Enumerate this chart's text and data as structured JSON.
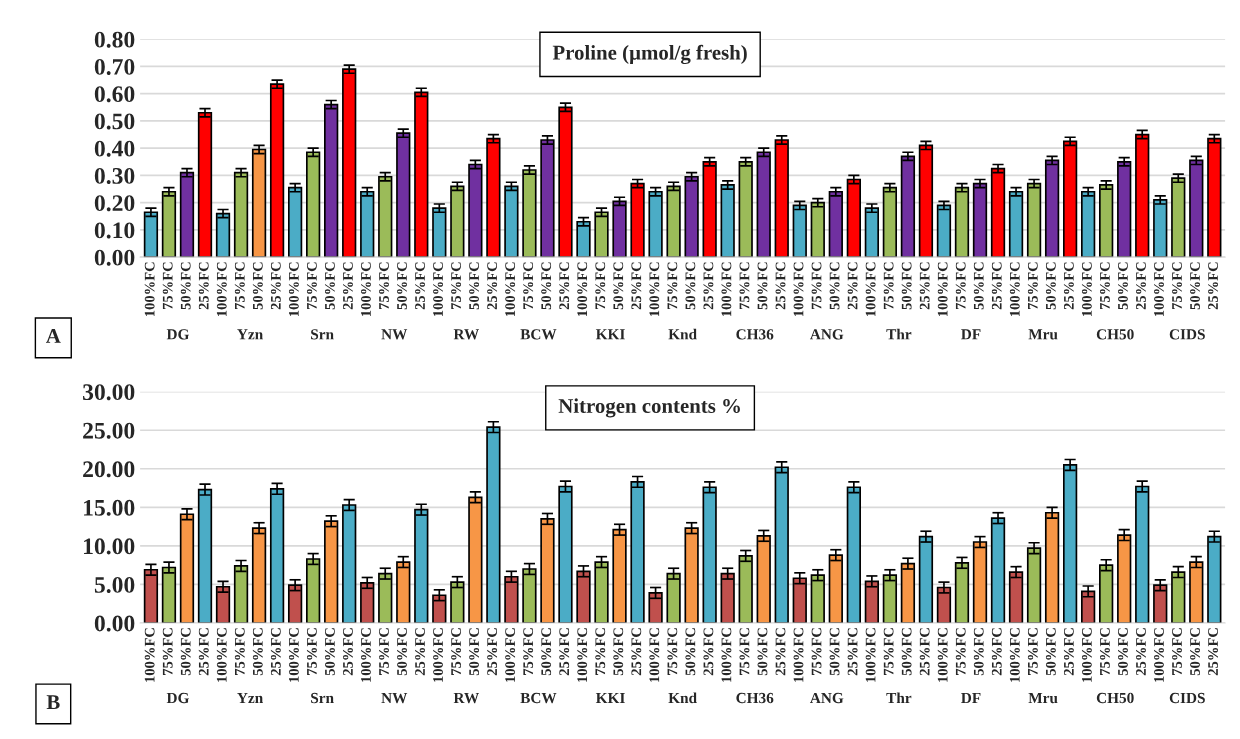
{
  "chart_data": [
    {
      "type": "bar",
      "title": "Proline (µmol/g fresh)",
      "categories": [
        "100%FC",
        "75%FC",
        "50%FC",
        "25%FC",
        "100%FC",
        "75%FC",
        "50%FC",
        "25%FC",
        "100%FC",
        "75%FC",
        "50%FC",
        "25%FC",
        "100%FC",
        "75%FC",
        "50%FC",
        "25%FC",
        "100%FC",
        "75%FC",
        "50%FC",
        "25%FC",
        "100%FC",
        "75%FC",
        "50%FC",
        "25%FC",
        "100%FC",
        "75%FC",
        "50%FC",
        "25%FC",
        "100%FC",
        "75%FC",
        "50%FC",
        "25%FC",
        "100%FC",
        "75%FC",
        "50%FC",
        "25%FC",
        "100%FC",
        "75%FC",
        "50%FC",
        "25%FC",
        "100%FC",
        "75%FC",
        "50%FC",
        "25%FC",
        "100%FC",
        "75%FC",
        "50%FC",
        "25%FC",
        "100%FC",
        "75%FC",
        "50%FC",
        "25%FC",
        "100%FC",
        "75%FC",
        "50%FC",
        "25%FC",
        "100%FC",
        "75%FC",
        "50%FC",
        "25%FC"
      ],
      "values": [
        0.165,
        0.24,
        0.31,
        0.53,
        0.16,
        0.31,
        0.395,
        0.635,
        0.255,
        0.385,
        0.56,
        0.69,
        0.24,
        0.295,
        0.455,
        0.605,
        0.18,
        0.26,
        0.34,
        0.435,
        0.26,
        0.32,
        0.43,
        0.55,
        0.13,
        0.165,
        0.205,
        0.27,
        0.24,
        0.26,
        0.295,
        0.35,
        0.265,
        0.35,
        0.385,
        0.43,
        0.19,
        0.2,
        0.24,
        0.285,
        0.18,
        0.255,
        0.37,
        0.41,
        0.19,
        0.255,
        0.27,
        0.325,
        0.24,
        0.27,
        0.355,
        0.425,
        0.24,
        0.265,
        0.35,
        0.45,
        0.21,
        0.29,
        0.355,
        0.435
      ],
      "colors": [
        "#4bacc6",
        "#9bbb59",
        "#7030a0",
        "#ff0000",
        "#4bacc6",
        "#9bbb59",
        "#f79646",
        "#ff0000",
        "#4bacc6",
        "#9bbb59",
        "#7030a0",
        "#ff0000",
        "#4bacc6",
        "#9bbb59",
        "#7030a0",
        "#ff0000",
        "#4bacc6",
        "#9bbb59",
        "#7030a0",
        "#ff0000",
        "#4bacc6",
        "#9bbb59",
        "#7030a0",
        "#ff0000",
        "#4bacc6",
        "#9bbb59",
        "#7030a0",
        "#ff0000",
        "#4bacc6",
        "#9bbb59",
        "#7030a0",
        "#ff0000",
        "#4bacc6",
        "#9bbb59",
        "#7030a0",
        "#ff0000",
        "#4bacc6",
        "#9bbb59",
        "#7030a0",
        "#ff0000",
        "#4bacc6",
        "#9bbb59",
        "#7030a0",
        "#ff0000",
        "#4bacc6",
        "#9bbb59",
        "#7030a0",
        "#ff0000",
        "#4bacc6",
        "#9bbb59",
        "#7030a0",
        "#ff0000",
        "#4bacc6",
        "#9bbb59",
        "#7030a0",
        "#ff0000",
        "#4bacc6",
        "#9bbb59",
        "#7030a0",
        "#ff0000"
      ],
      "errors": [
        0.015,
        0.015,
        0.015,
        0.015,
        0.015,
        0.015,
        0.015,
        0.015,
        0.015,
        0.015,
        0.015,
        0.015,
        0.015,
        0.015,
        0.015,
        0.015,
        0.015,
        0.015,
        0.015,
        0.015,
        0.015,
        0.015,
        0.015,
        0.015,
        0.015,
        0.015,
        0.015,
        0.015,
        0.015,
        0.015,
        0.015,
        0.015,
        0.015,
        0.015,
        0.015,
        0.015,
        0.015,
        0.015,
        0.015,
        0.015,
        0.015,
        0.015,
        0.015,
        0.015,
        0.015,
        0.015,
        0.015,
        0.015,
        0.015,
        0.015,
        0.015,
        0.015,
        0.015,
        0.015,
        0.015,
        0.015,
        0.015,
        0.015,
        0.015,
        0.015
      ],
      "ylim": [
        0,
        0.8
      ],
      "yticks": [
        {
          "value": 0,
          "label": "0.00"
        },
        {
          "value": 0.1,
          "label": "0.10"
        },
        {
          "value": 0.2,
          "label": "0.20"
        },
        {
          "value": 0.3,
          "label": "0.30"
        },
        {
          "value": 0.4,
          "label": "0.40"
        },
        {
          "value": 0.5,
          "label": "0.50"
        },
        {
          "value": 0.6,
          "label": "0.60"
        },
        {
          "value": 0.7,
          "label": "0.70"
        },
        {
          "value": 0.8,
          "label": "0.80"
        }
      ],
      "grid": "y",
      "annotations": [
        "DG",
        "Yzn",
        "Srn",
        "NW",
        "RW",
        "BCW",
        "KKI",
        "Knd",
        "CH36",
        "ANG",
        "Thr",
        "DF",
        "Mru",
        "CH50",
        "CIDS",
        "A"
      ]
    },
    {
      "type": "bar",
      "title": "Nitrogen contents %",
      "categories": [
        "100%FC",
        "75%FC",
        "50%FC",
        "25%FC",
        "100%FC",
        "75%FC",
        "50%FC",
        "25%FC",
        "100%FC",
        "75%FC",
        "50%FC",
        "25%FC",
        "100%FC",
        "75%FC",
        "50%FC",
        "25%FC",
        "100%FC",
        "75%FC",
        "50%FC",
        "25%FC",
        "100%FC",
        "75%FC",
        "50%FC",
        "25%FC",
        "100%FC",
        "75%FC",
        "50%FC",
        "25%FC",
        "100%FC",
        "75%FC",
        "50%FC",
        "25%FC",
        "100%FC",
        "75%FC",
        "50%FC",
        "25%FC",
        "100%FC",
        "75%FC",
        "50%FC",
        "25%FC",
        "100%FC",
        "75%FC",
        "50%FC",
        "25%FC",
        "100%FC",
        "75%FC",
        "50%FC",
        "25%FC",
        "100%FC",
        "75%FC",
        "50%FC",
        "25%FC",
        "100%FC",
        "75%FC",
        "50%FC",
        "25%FC",
        "100%FC",
        "75%FC",
        "50%FC",
        "25%FC"
      ],
      "values": [
        6.9,
        7.2,
        14.1,
        17.3,
        4.7,
        7.4,
        12.3,
        17.4,
        4.9,
        8.3,
        13.2,
        15.3,
        5.2,
        6.4,
        7.9,
        14.7,
        3.6,
        5.3,
        16.3,
        25.4,
        6.0,
        7.0,
        13.5,
        17.7,
        6.7,
        7.9,
        12.1,
        18.3,
        3.9,
        6.4,
        12.3,
        17.6,
        6.4,
        8.7,
        11.3,
        20.2,
        5.8,
        6.2,
        8.8,
        17.6,
        5.4,
        6.2,
        7.7,
        11.2,
        4.6,
        7.8,
        10.5,
        13.6,
        6.6,
        9.7,
        14.3,
        20.5,
        4.1,
        7.5,
        11.4,
        17.7,
        4.9,
        6.6,
        7.9,
        11.2
      ],
      "colors": [
        "#c0504d",
        "#9bbb59",
        "#f79646",
        "#4bacc6",
        "#c0504d",
        "#9bbb59",
        "#f79646",
        "#4bacc6",
        "#c0504d",
        "#9bbb59",
        "#f79646",
        "#4bacc6",
        "#c0504d",
        "#9bbb59",
        "#f79646",
        "#4bacc6",
        "#c0504d",
        "#9bbb59",
        "#f79646",
        "#4bacc6",
        "#c0504d",
        "#9bbb59",
        "#f79646",
        "#4bacc6",
        "#c0504d",
        "#9bbb59",
        "#f79646",
        "#4bacc6",
        "#c0504d",
        "#9bbb59",
        "#f79646",
        "#4bacc6",
        "#c0504d",
        "#9bbb59",
        "#f79646",
        "#4bacc6",
        "#c0504d",
        "#9bbb59",
        "#f79646",
        "#4bacc6",
        "#c0504d",
        "#9bbb59",
        "#f79646",
        "#4bacc6",
        "#c0504d",
        "#9bbb59",
        "#f79646",
        "#4bacc6",
        "#c0504d",
        "#9bbb59",
        "#f79646",
        "#4bacc6",
        "#c0504d",
        "#9bbb59",
        "#f79646",
        "#4bacc6",
        "#c0504d",
        "#9bbb59",
        "#f79646",
        "#4bacc6"
      ],
      "errors": [
        0.7,
        0.7,
        0.7,
        0.7,
        0.7,
        0.7,
        0.7,
        0.7,
        0.7,
        0.7,
        0.7,
        0.7,
        0.7,
        0.7,
        0.7,
        0.7,
        0.7,
        0.7,
        0.7,
        0.7,
        0.7,
        0.7,
        0.7,
        0.7,
        0.7,
        0.7,
        0.7,
        0.7,
        0.7,
        0.7,
        0.7,
        0.7,
        0.7,
        0.7,
        0.7,
        0.7,
        0.7,
        0.7,
        0.7,
        0.7,
        0.7,
        0.7,
        0.7,
        0.7,
        0.7,
        0.7,
        0.7,
        0.7,
        0.7,
        0.7,
        0.7,
        0.7,
        0.7,
        0.7,
        0.7,
        0.7,
        0.7,
        0.7,
        0.7,
        0.7
      ],
      "ylim": [
        0,
        30
      ],
      "yticks": [
        {
          "value": 0,
          "label": "0.00"
        },
        {
          "value": 5,
          "label": "5.00"
        },
        {
          "value": 10,
          "label": "10.00"
        },
        {
          "value": 15,
          "label": "15.00"
        },
        {
          "value": 20,
          "label": "20.00"
        },
        {
          "value": 25,
          "label": "25.00"
        },
        {
          "value": 30,
          "label": "30.00"
        }
      ],
      "grid": "y",
      "annotations": [
        "DG",
        "Yzn",
        "Srn",
        "NW",
        "RW",
        "BCW",
        "KKI",
        "Knd",
        "CH36",
        "ANG",
        "Thr",
        "DF",
        "Mru",
        "CH50",
        "CIDS",
        "B"
      ]
    }
  ]
}
